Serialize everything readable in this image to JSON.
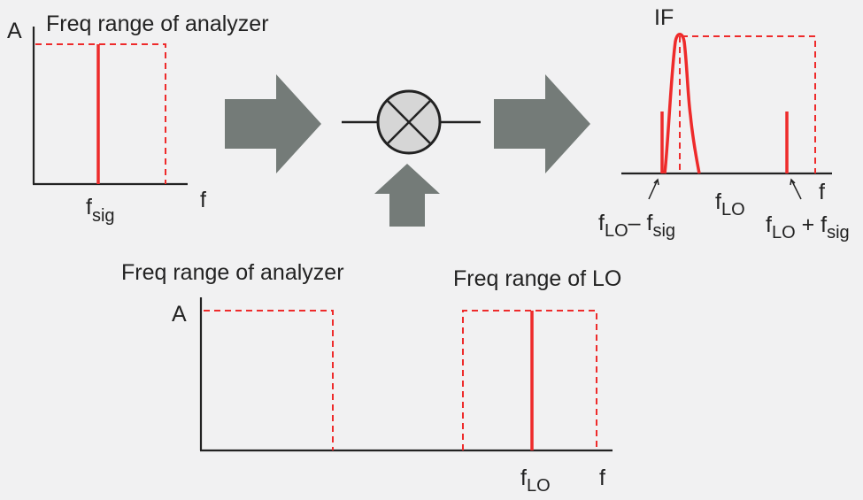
{
  "colors": {
    "background": "#f1f1f2",
    "axis": "#222222",
    "signal_red": "#ee2b2b",
    "arrow_gray": "#747b78",
    "mixer_fill": "#d6d6d6"
  },
  "top_left_panel": {
    "title": "Freq range of analyzer",
    "y_label": "A",
    "x_label": "f",
    "signal_label_main": "f",
    "signal_label_sub": "sig"
  },
  "mixer": {
    "icon": "mixer-x-circle-icon"
  },
  "arrows": {
    "input_arrow_icon": "right-arrow-icon",
    "output_arrow_icon": "right-arrow-icon",
    "lo_arrow_icon": "up-arrow-icon"
  },
  "if_panel": {
    "title": "IF",
    "x_label": "f",
    "lo_label_main": "f",
    "lo_label_sub": "LO",
    "diff_label": {
      "a_main": "f",
      "a_sub": "LO",
      "op": "–",
      "b_main": "f",
      "b_sub": "sig"
    },
    "sum_label": {
      "a_main": "f",
      "a_sub": "LO",
      "op": "+",
      "b_main": "f",
      "b_sub": "sig"
    }
  },
  "bottom_panel": {
    "analyzer_title": "Freq range of analyzer",
    "lo_title": "Freq range of LO",
    "y_label": "A",
    "x_label": "f",
    "lo_label_main": "f",
    "lo_label_sub": "LO"
  }
}
